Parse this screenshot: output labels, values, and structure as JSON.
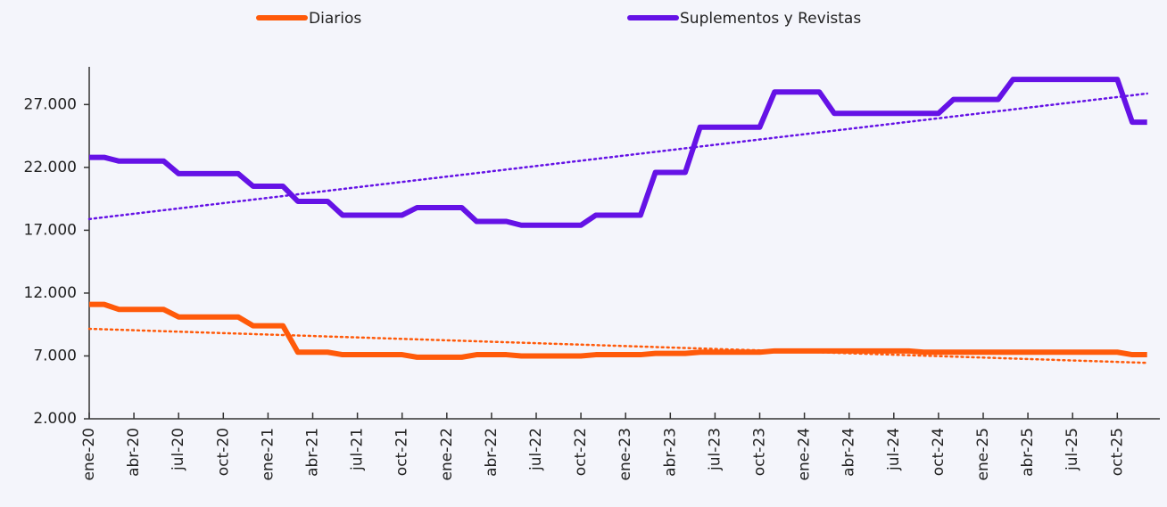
{
  "chart_data": {
    "type": "line",
    "categories": [
      "ene-20",
      null,
      null,
      "abr-20",
      null,
      null,
      "jul-20",
      null,
      null,
      "oct-20",
      null,
      null,
      "ene-21",
      null,
      null,
      "abr-21",
      null,
      null,
      "jul-21",
      null,
      null,
      "oct-21",
      null,
      null,
      "ene-22",
      null,
      null,
      "abr-22",
      null,
      null,
      "jul-22",
      null,
      null,
      "oct-22",
      null,
      null,
      "ene-23",
      null,
      null,
      "abr-23",
      null,
      null,
      "jul-23",
      null,
      null,
      "oct-23",
      null,
      null,
      "ene-24",
      null,
      null,
      "abr-24",
      null,
      null,
      "jul-24",
      null,
      null,
      "oct-24",
      null,
      null,
      "ene-25",
      null,
      null,
      "abr-25",
      null,
      null,
      "jul-25",
      null,
      null,
      "oct-25",
      null,
      null
    ],
    "series": [
      {
        "name": "Diarios",
        "color": "#ff5a0a",
        "trendline": true,
        "values": [
          11100,
          11100,
          10700,
          10700,
          10700,
          10700,
          10100,
          10100,
          10100,
          10100,
          10100,
          9400,
          9400,
          9400,
          7300,
          7300,
          7300,
          7100,
          7100,
          7100,
          7100,
          7100,
          6900,
          6900,
          6900,
          6900,
          7100,
          7100,
          7100,
          7000,
          7000,
          7000,
          7000,
          7000,
          7100,
          7100,
          7100,
          7100,
          7200,
          7200,
          7200,
          7300,
          7300,
          7300,
          7300,
          7300,
          7400,
          7400,
          7400,
          7400,
          7400,
          7400,
          7400,
          7400,
          7400,
          7400,
          7300,
          7300,
          7300,
          7300,
          7300,
          7300,
          7300,
          7300,
          7300,
          7300,
          7300,
          7300,
          7300,
          7300,
          7100,
          7100
        ]
      },
      {
        "name": "Suplementos y Revistas",
        "color": "#6512e6",
        "trendline": true,
        "values": [
          22800,
          22800,
          22500,
          22500,
          22500,
          22500,
          21500,
          21500,
          21500,
          21500,
          21500,
          20500,
          20500,
          20500,
          19300,
          19300,
          19300,
          18200,
          18200,
          18200,
          18200,
          18200,
          18800,
          18800,
          18800,
          18800,
          17700,
          17700,
          17700,
          17400,
          17400,
          17400,
          17400,
          17400,
          18200,
          18200,
          18200,
          18200,
          21600,
          21600,
          21600,
          25200,
          25200,
          25200,
          25200,
          25200,
          28000,
          28000,
          28000,
          28000,
          26300,
          26300,
          26300,
          26300,
          26300,
          26300,
          26300,
          26300,
          27400,
          27400,
          27400,
          27400,
          29000,
          29000,
          29000,
          29000,
          29000,
          29000,
          29000,
          29000,
          25600,
          25600
        ]
      }
    ],
    "ylim": [
      2000,
      30000
    ],
    "yticks": [
      {
        "value": 2000,
        "label": "2.000"
      },
      {
        "value": 7000,
        "label": "7.000"
      },
      {
        "value": 12000,
        "label": "12.000"
      },
      {
        "value": 17000,
        "label": "17.000"
      },
      {
        "value": 22000,
        "label": "22.000"
      },
      {
        "value": 27000,
        "label": "27.000"
      }
    ],
    "legend": "top"
  }
}
